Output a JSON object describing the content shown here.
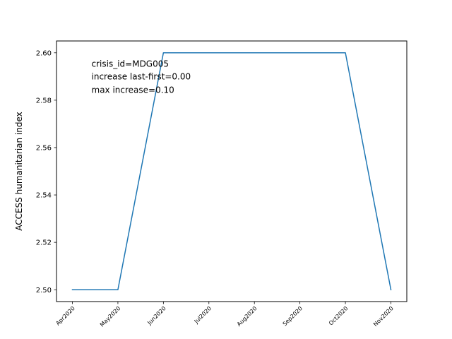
{
  "chart_data": {
    "type": "line",
    "title": "",
    "xlabel": "",
    "ylabel": "ACCESS humanitarian index",
    "categories": [
      "Apr2020",
      "May2020",
      "Jun2020",
      "Jul2020",
      "Aug2020",
      "Sep2020",
      "Oct2020",
      "Nov2020"
    ],
    "series": [
      {
        "values": [
          2.5,
          2.5,
          2.6,
          2.6,
          2.6,
          2.6,
          2.6,
          2.5
        ],
        "color": "#1f77b4"
      }
    ],
    "ylim": [
      2.495,
      2.605
    ],
    "yticks": [
      "2.50",
      "2.52",
      "2.54",
      "2.56",
      "2.58",
      "2.60"
    ],
    "annotations": [
      "crisis_id=MDG005",
      "increase last-first=0.00",
      "max increase=0.10"
    ],
    "grid": false,
    "legend": "none"
  }
}
